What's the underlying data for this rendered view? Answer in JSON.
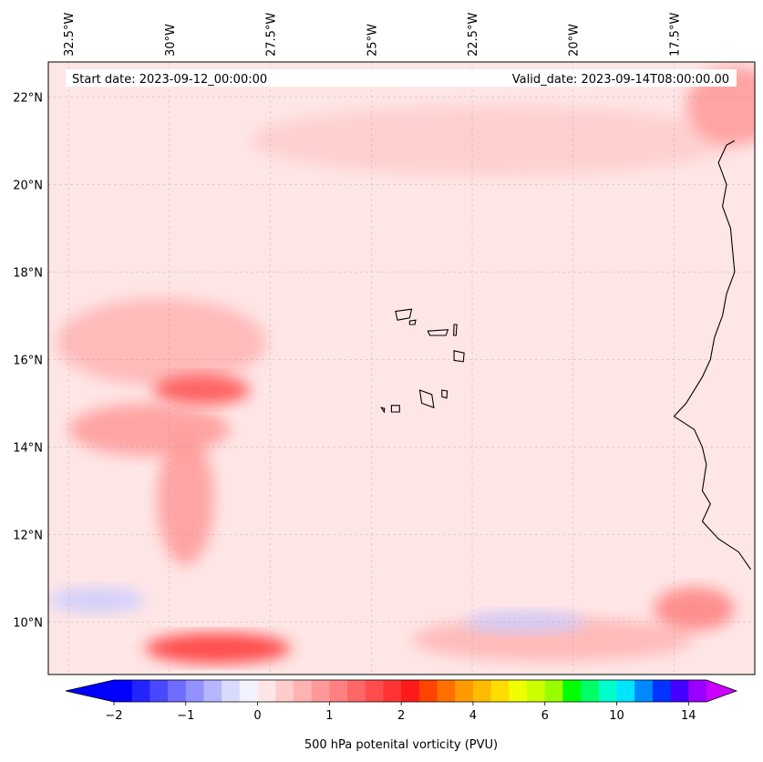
{
  "header": {
    "start_date": "Start date: 2023-09-12_00:00:00",
    "valid_date": "Valid_date: 2023-09-14T08:00:00.00"
  },
  "map": {
    "extent": {
      "lon_min": -33.0,
      "lon_max": -15.5,
      "lat_min": 8.8,
      "lat_max": 22.8
    },
    "gridlines": true,
    "lon_ticks": [
      {
        "label": "32.5°W",
        "lon": -32.5
      },
      {
        "label": "30°W",
        "lon": -30.0
      },
      {
        "label": "27.5°W",
        "lon": -27.5
      },
      {
        "label": "25°W",
        "lon": -25.0
      },
      {
        "label": "22.5°W",
        "lon": -22.5
      },
      {
        "label": "20°W",
        "lon": -20.0
      },
      {
        "label": "17.5°W",
        "lon": -17.5
      }
    ],
    "lat_ticks": [
      {
        "label": "22°N",
        "lat": 22
      },
      {
        "label": "20°N",
        "lat": 20
      },
      {
        "label": "18°N",
        "lat": 18
      },
      {
        "label": "16°N",
        "lat": 16
      },
      {
        "label": "14°N",
        "lat": 14
      },
      {
        "label": "12°N",
        "lat": 12
      },
      {
        "label": "10°N",
        "lat": 10
      }
    ],
    "background_color": "#ffe6e6",
    "features": [
      {
        "name": "pv-band-northwest",
        "lon": -30.2,
        "lat": 16.4,
        "rlon": 2.6,
        "rlat": 1.0,
        "color": "#ffb3b3"
      },
      {
        "name": "pv-max-west",
        "lon": -29.2,
        "lat": 15.3,
        "rlon": 1.2,
        "rlat": 0.35,
        "color": "#ff4d4d"
      },
      {
        "name": "pv-band-west",
        "lon": -30.5,
        "lat": 14.4,
        "rlon": 2.0,
        "rlat": 0.6,
        "color": "#ff9999"
      },
      {
        "name": "pv-streak-west",
        "lon": -29.6,
        "lat": 12.8,
        "rlon": 0.7,
        "rlat": 1.5,
        "color": "#ff9999"
      },
      {
        "name": "pv-max-south",
        "lon": -28.8,
        "lat": 9.4,
        "rlon": 1.8,
        "rlat": 0.35,
        "color": "#ff3333"
      },
      {
        "name": "pv-band-south",
        "lon": -20.5,
        "lat": 9.6,
        "rlon": 3.5,
        "rlat": 0.5,
        "color": "#ffb3b3"
      },
      {
        "name": "pv-max-southeast",
        "lon": -17.0,
        "lat": 10.3,
        "rlon": 1.0,
        "rlat": 0.5,
        "color": "#ff8080"
      },
      {
        "name": "pv-band-north",
        "lon": -22.0,
        "lat": 21.0,
        "rlon": 6.0,
        "rlat": 0.8,
        "color": "#ffcccc"
      },
      {
        "name": "pv-max-northeast",
        "lon": -16.0,
        "lat": 21.8,
        "rlon": 1.2,
        "rlat": 0.9,
        "color": "#ff9999"
      },
      {
        "name": "pv-low-west",
        "lon": -31.8,
        "lat": 10.5,
        "rlon": 1.2,
        "rlat": 0.3,
        "color": "#ccccff"
      },
      {
        "name": "pv-low-south",
        "lon": -21.2,
        "lat": 10.0,
        "rlon": 1.5,
        "rlat": 0.25,
        "color": "#ccccff"
      }
    ],
    "islands": [
      {
        "name": "Santo Antão",
        "points": [
          [
            -24.4,
            17.1
          ],
          [
            -24.0,
            17.15
          ],
          [
            -24.05,
            16.95
          ],
          [
            -24.35,
            16.9
          ]
        ]
      },
      {
        "name": "São Vicente",
        "points": [
          [
            -24.05,
            16.88
          ],
          [
            -23.9,
            16.9
          ],
          [
            -23.92,
            16.8
          ],
          [
            -24.05,
            16.8
          ]
        ]
      },
      {
        "name": "São Nicolau",
        "points": [
          [
            -23.6,
            16.65
          ],
          [
            -23.1,
            16.68
          ],
          [
            -23.15,
            16.55
          ],
          [
            -23.55,
            16.55
          ]
        ]
      },
      {
        "name": "Sal",
        "points": [
          [
            -22.95,
            16.8
          ],
          [
            -22.88,
            16.8
          ],
          [
            -22.9,
            16.55
          ],
          [
            -22.96,
            16.55
          ]
        ]
      },
      {
        "name": "Boa Vista",
        "points": [
          [
            -22.95,
            16.2
          ],
          [
            -22.7,
            16.15
          ],
          [
            -22.72,
            15.95
          ],
          [
            -22.95,
            15.98
          ]
        ]
      },
      {
        "name": "Maio",
        "points": [
          [
            -23.25,
            15.3
          ],
          [
            -23.12,
            15.28
          ],
          [
            -23.13,
            15.12
          ],
          [
            -23.25,
            15.15
          ]
        ]
      },
      {
        "name": "Santiago",
        "points": [
          [
            -23.8,
            15.3
          ],
          [
            -23.5,
            15.2
          ],
          [
            -23.45,
            14.9
          ],
          [
            -23.75,
            15.0
          ]
        ]
      },
      {
        "name": "Fogo",
        "points": [
          [
            -24.5,
            14.95
          ],
          [
            -24.3,
            14.95
          ],
          [
            -24.3,
            14.8
          ],
          [
            -24.5,
            14.8
          ]
        ]
      },
      {
        "name": "Brava",
        "points": [
          [
            -24.75,
            14.9
          ],
          [
            -24.67,
            14.88
          ],
          [
            -24.68,
            14.8
          ],
          -24.76,
          14.82
        ]
      }
    ],
    "coastline": [
      [
        -16.0,
        21.0
      ],
      [
        -16.2,
        20.9
      ],
      [
        -16.4,
        20.5
      ],
      [
        -16.2,
        20.0
      ],
      [
        -16.3,
        19.5
      ],
      [
        -16.1,
        19.0
      ],
      [
        -16.05,
        18.5
      ],
      [
        -16.0,
        18.0
      ],
      [
        -16.2,
        17.5
      ],
      [
        -16.3,
        17.0
      ],
      [
        -16.5,
        16.5
      ],
      [
        -16.6,
        16.0
      ],
      [
        -16.8,
        15.6
      ],
      [
        -17.2,
        15.0
      ],
      [
        -17.5,
        14.7
      ],
      [
        -17.0,
        14.4
      ],
      [
        -16.8,
        14.0
      ],
      [
        -16.7,
        13.6
      ],
      [
        -16.8,
        13.0
      ],
      [
        -16.6,
        12.7
      ],
      [
        -16.8,
        12.3
      ],
      [
        -16.4,
        11.9
      ],
      [
        -15.9,
        11.6
      ],
      [
        -15.6,
        11.2
      ]
    ]
  },
  "colorbar": {
    "label": "500 hPa potenital vorticity (PVU)",
    "ticks": [
      "−2",
      "−1",
      "0",
      "1",
      "2",
      "4",
      "6",
      "10",
      "14"
    ],
    "levels": [
      -2.0,
      -1.75,
      -1.5,
      -1.25,
      -1.0,
      -0.75,
      -0.5,
      -0.25,
      0.0,
      0.25,
      0.5,
      0.75,
      1.0,
      1.25,
      1.5,
      1.75,
      2.0,
      2.5,
      3.0,
      3.5,
      4.0,
      4.5,
      5.0,
      5.5,
      6.0,
      7.0,
      8.0,
      9.0,
      10.0,
      11.0,
      12.0,
      13.0,
      14.0
    ],
    "colors": [
      "#0000ff",
      "#2424ff",
      "#4848ff",
      "#6d6dff",
      "#9191ff",
      "#b6b6ff",
      "#dadaff",
      "#f3f3ff",
      "#ffe6e6",
      "#ffcccc",
      "#ffb3b3",
      "#ff9999",
      "#ff8080",
      "#ff6666",
      "#ff4d4d",
      "#ff3333",
      "#ff1a1a",
      "#ff4400",
      "#ff7000",
      "#ff9900",
      "#ffbb00",
      "#ffdd00",
      "#eeff00",
      "#ccff00",
      "#99ff00",
      "#00ff00",
      "#00ff66",
      "#00ffcc",
      "#00e5ff",
      "#0088ff",
      "#0033ff",
      "#4400ff",
      "#9900ff"
    ],
    "under_color": "#0000ff",
    "over_color": "#cc00ff"
  }
}
